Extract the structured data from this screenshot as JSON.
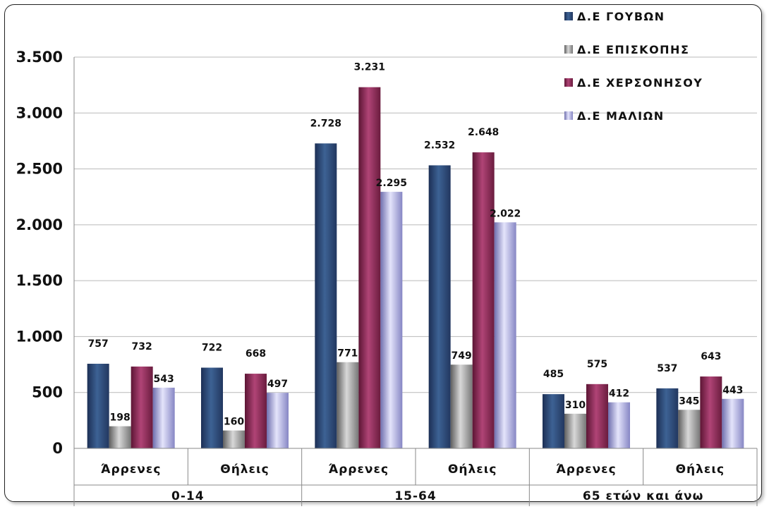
{
  "chart_data": {
    "type": "bar",
    "groups": [
      "0-14",
      "15-64",
      "65 ετών και άνω"
    ],
    "categories": [
      "Άρρενες",
      "Θήλεις",
      "Άρρενες",
      "Θήλεις",
      "Άρρενες",
      "Θήλεις"
    ],
    "series": [
      {
        "name": "Δ.Ε ΓΟΥΒΩΝ",
        "values": [
          757,
          722,
          2728,
          2532,
          485,
          537
        ],
        "labels": [
          "757",
          "722",
          "2.728",
          "2.532",
          "485",
          "537"
        ],
        "color": "#2f4f7f"
      },
      {
        "name": "Δ.Ε ΕΠΙΣΚΟΠΗΣ",
        "values": [
          198,
          160,
          771,
          749,
          310,
          345
        ],
        "labels": [
          "198",
          "160",
          "771",
          "749",
          "310",
          "345"
        ],
        "color": "#8c8c8c"
      },
      {
        "name": "Δ.Ε ΧΕΡΣΟΝΗΣΟΥ",
        "values": [
          732,
          668,
          3231,
          2648,
          575,
          643
        ],
        "labels": [
          "732",
          "668",
          "3.231",
          "2.648",
          "575",
          "643"
        ],
        "color": "#8b2a55"
      },
      {
        "name": "Δ.Ε ΜΑΛΙΩΝ",
        "values": [
          543,
          497,
          2295,
          2022,
          412,
          443
        ],
        "labels": [
          "543",
          "497",
          "2.295",
          "2.022",
          "412",
          "443"
        ],
        "color": "#9a9ad0"
      }
    ],
    "yticks": [
      0,
      500,
      1000,
      1500,
      2000,
      2500,
      3000,
      3500
    ],
    "ytick_labels": [
      "0",
      "500",
      "1.000",
      "1.500",
      "2.000",
      "2.500",
      "3.000",
      "3.500"
    ],
    "ylim": [
      0,
      3500
    ],
    "grid": true,
    "legend": "top-right"
  }
}
